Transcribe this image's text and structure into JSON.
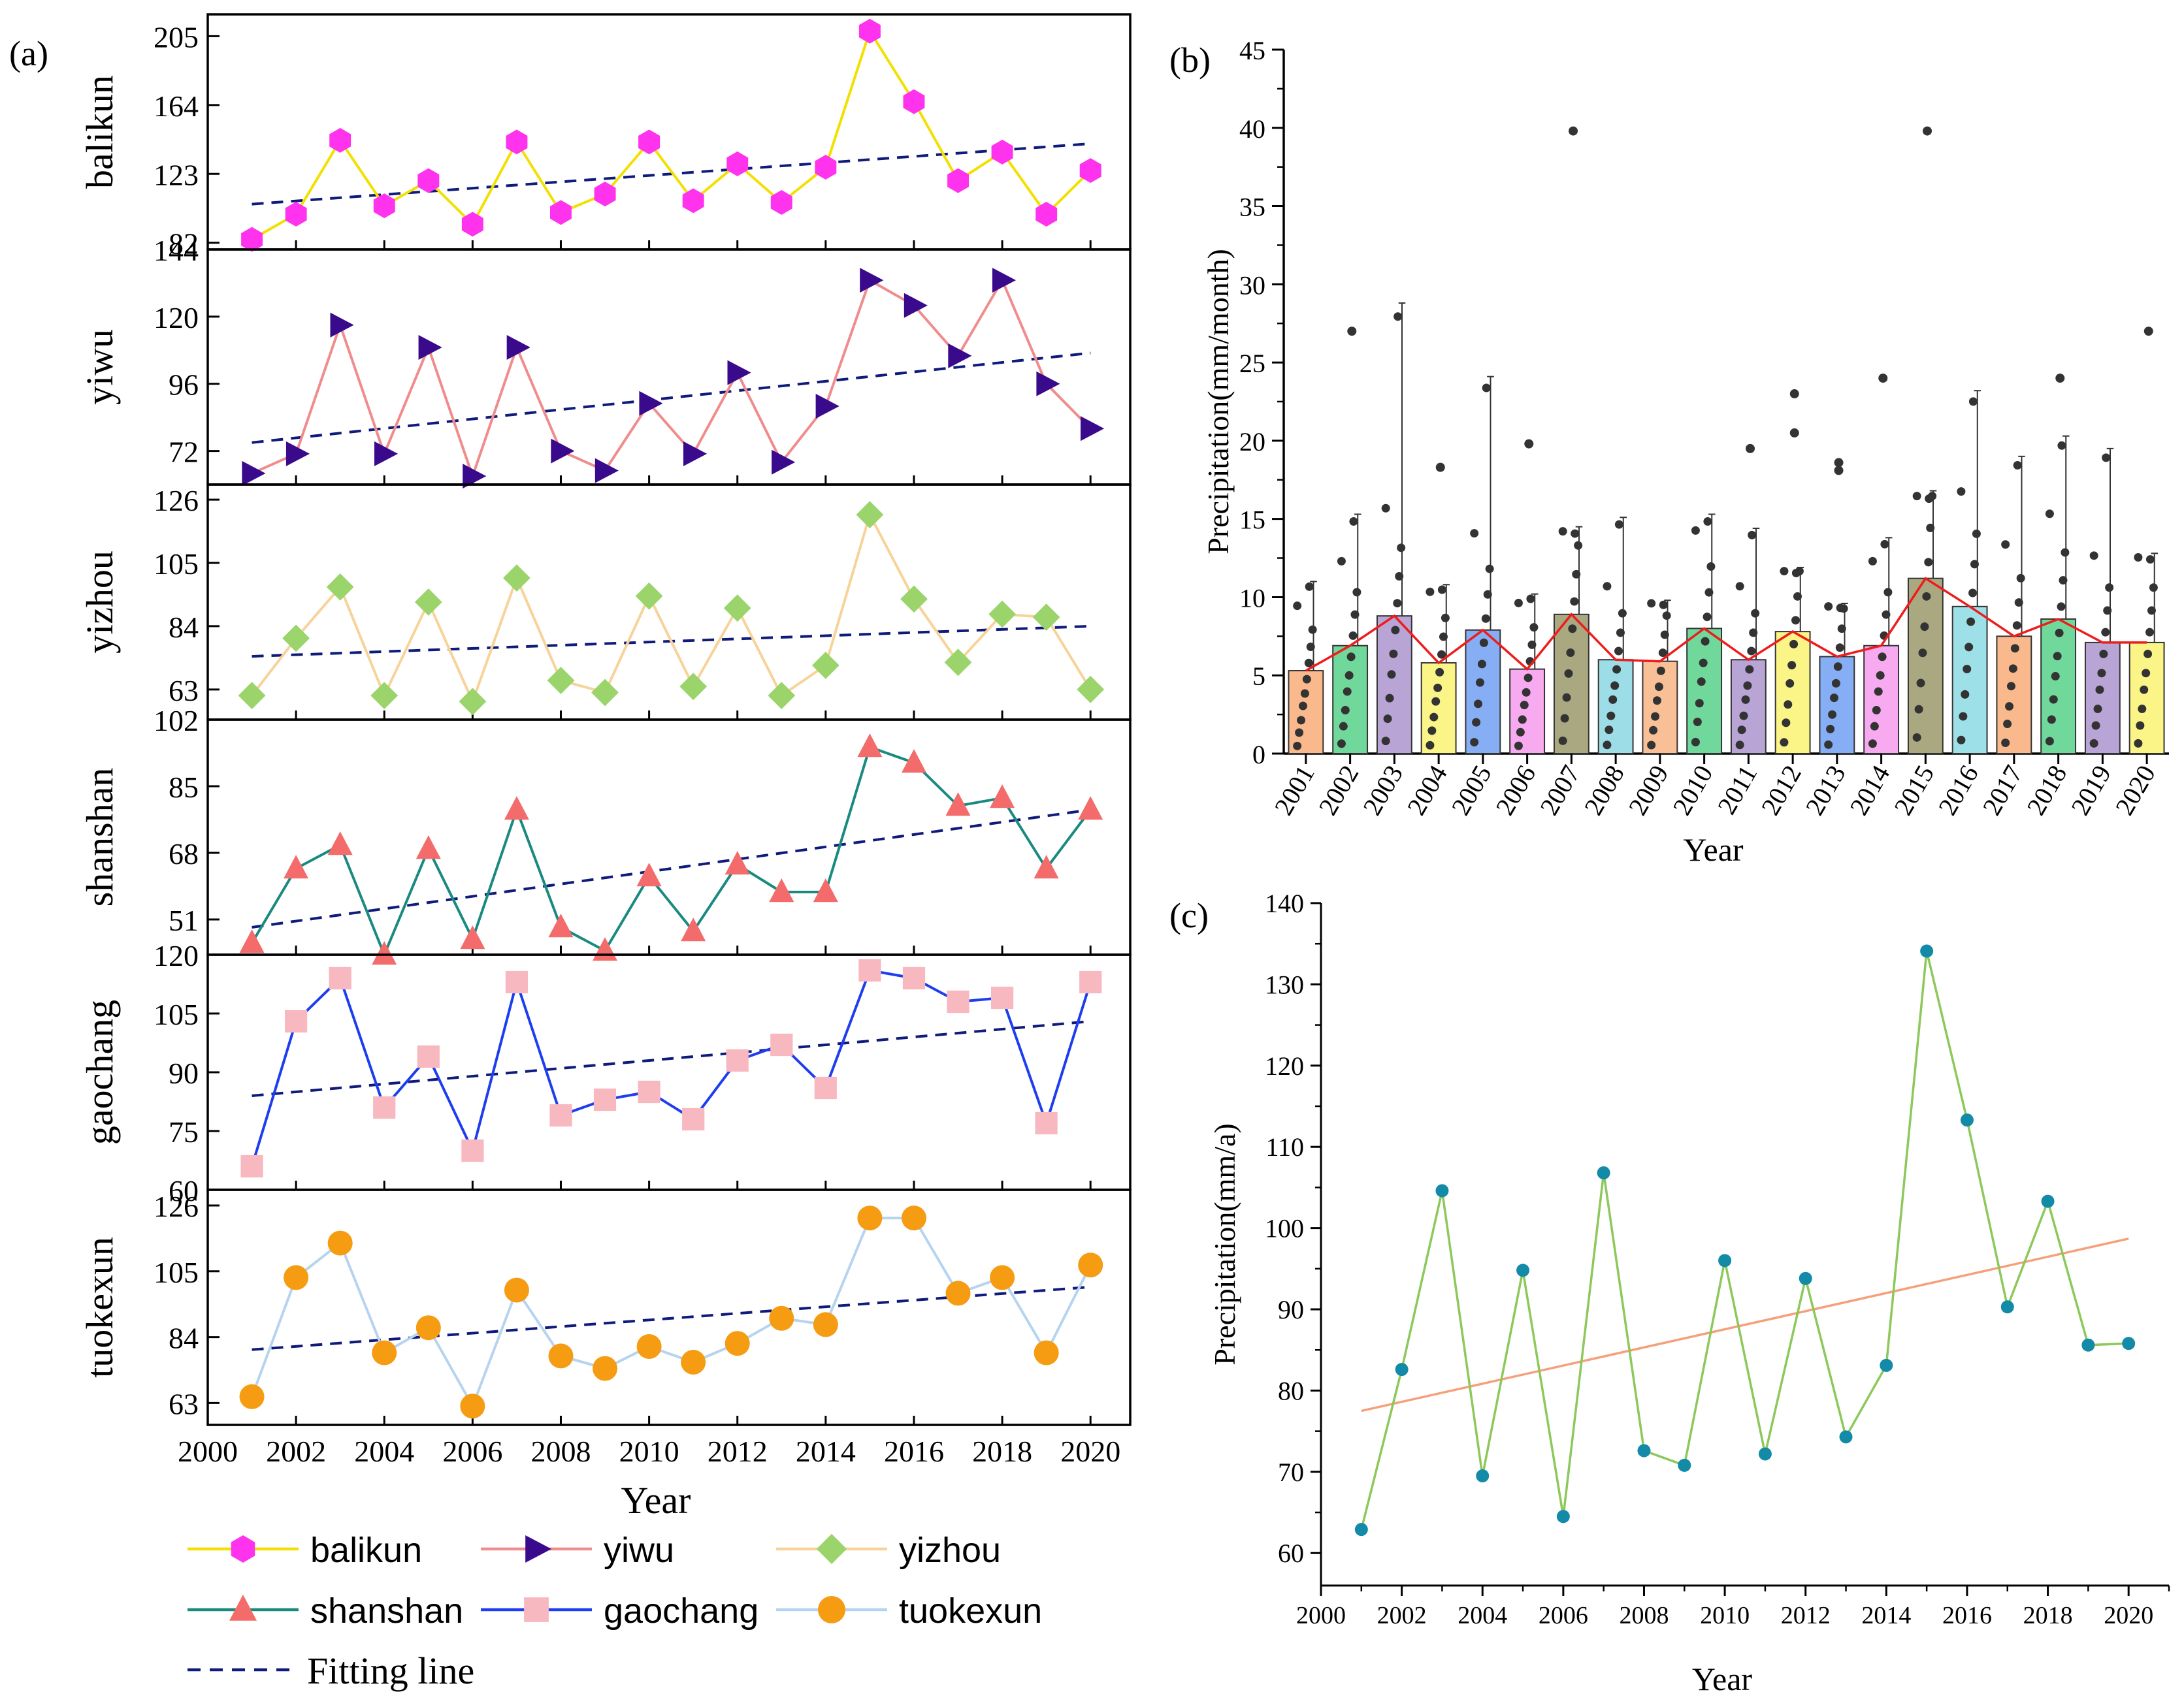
{
  "panel_labels": {
    "a": "(a)",
    "b": "(b)",
    "c": "(c)"
  },
  "colors": {
    "fit_line": "#0f1b7a",
    "balikun_line": "#f2e000",
    "balikun_marker": "#ff33ee",
    "yiwu_line": "#f08c8c",
    "yiwu_marker": "#3a0a8c",
    "yizhou_line": "#f7d39a",
    "yizhou_marker": "#9ad46a",
    "shanshan_line": "#1a8a80",
    "shanshan_marker": "#f46b6b",
    "gaochang_line": "#1d3ef0",
    "gaochang_marker": "#f7b8c0",
    "tuokexun_line": "#b6d4f0",
    "tuokexun_marker": "#f59c12",
    "c_line": "#8cc85a",
    "c_marker": "#138aa8",
    "c_fit": "#f5a07a",
    "b_mean_line": "#ee1c1c",
    "b_points": "#333333"
  },
  "chart_data": [
    {
      "id": "a",
      "type": "line",
      "xlabel": "Year",
      "xlim": [
        2000,
        2020.9
      ],
      "x_ticks": [
        "2000",
        "2002",
        "2004",
        "2006",
        "2008",
        "2010",
        "2012",
        "2014",
        "2016",
        "2018",
        "2020"
      ],
      "x": [
        2001,
        2002,
        2003,
        2004,
        2005,
        2006,
        2007,
        2008,
        2009,
        2010,
        2011,
        2012,
        2013,
        2014,
        2015,
        2016,
        2017,
        2018,
        2019,
        2020
      ],
      "series": [
        {
          "name": "balikun",
          "ylim": [
            78,
            218
          ],
          "y_ticks": [
            "82",
            "123",
            "164",
            "205"
          ],
          "marker": "hexagon",
          "values": [
            84,
            99,
            143,
            104,
            119,
            93,
            142,
            100,
            111,
            142,
            107,
            129,
            106,
            127,
            208,
            166,
            119,
            136,
            99,
            125
          ],
          "fit": [
            105,
            141
          ]
        },
        {
          "name": "yiwu",
          "ylim": [
            60,
            144
          ],
          "y_ticks": [
            "72",
            "96",
            "120",
            "144"
          ],
          "marker": "triangle-right",
          "values": [
            64,
            71,
            117,
            71,
            109,
            63,
            109,
            72,
            65,
            89,
            71,
            100,
            68,
            88,
            133,
            124,
            106,
            133,
            96,
            80
          ],
          "fit": [
            75,
            107
          ]
        },
        {
          "name": "yizhou",
          "ylim": [
            53,
            131
          ],
          "y_ticks": [
            "63",
            "84",
            "105",
            "126"
          ],
          "marker": "diamond",
          "values": [
            61,
            80,
            97,
            61,
            92,
            59,
            100,
            66,
            62,
            94,
            64,
            90,
            61,
            71,
            121,
            93,
            72,
            88,
            87,
            63
          ],
          "fit": [
            74,
            84
          ]
        },
        {
          "name": "shanshan",
          "ylim": [
            42,
            102
          ],
          "y_ticks": [
            "51",
            "68",
            "85",
            "102"
          ],
          "marker": "triangle-up",
          "values": [
            45,
            64,
            70,
            42,
            69,
            46,
            79,
            49,
            43,
            62,
            48,
            65,
            58,
            58,
            95,
            91,
            80,
            82,
            64,
            79
          ],
          "fit": [
            49,
            79
          ]
        },
        {
          "name": "gaochang",
          "ylim": [
            60,
            120
          ],
          "y_ticks": [
            "60",
            "75",
            "90",
            "105",
            "120"
          ],
          "marker": "square",
          "values": [
            66,
            103,
            114,
            81,
            94,
            70,
            113,
            79,
            83,
            85,
            78,
            93,
            97,
            86,
            116,
            114,
            108,
            109,
            77,
            113
          ],
          "fit": [
            84,
            103
          ]
        },
        {
          "name": "tuokexun",
          "ylim": [
            56,
            131
          ],
          "y_ticks": [
            "63",
            "84",
            "105",
            "126"
          ],
          "marker": "circle",
          "values": [
            65,
            103,
            114,
            79,
            87,
            62,
            99,
            78,
            74,
            81,
            76,
            82,
            90,
            88,
            122,
            122,
            98,
            103,
            79,
            107
          ],
          "fit": [
            80,
            100
          ]
        }
      ],
      "legend": [
        "balikun",
        "yiwu",
        "yizhou",
        "shanshan",
        "gaochang",
        "tuokexun",
        "Fitting line"
      ]
    },
    {
      "id": "b",
      "type": "bar",
      "xlabel": "Year",
      "ylabel": "Precipitation(mm/month)",
      "ylim": [
        0,
        45
      ],
      "y_ticks": [
        "0",
        "5",
        "10",
        "15",
        "20",
        "25",
        "30",
        "35",
        "40",
        "45"
      ],
      "categories": [
        "2001",
        "2002",
        "2003",
        "2004",
        "2005",
        "2006",
        "2007",
        "2008",
        "2009",
        "2010",
        "2011",
        "2012",
        "2013",
        "2014",
        "2015",
        "2016",
        "2017",
        "2018",
        "2019",
        "2020"
      ],
      "values": [
        5.3,
        6.9,
        8.8,
        5.8,
        7.9,
        5.4,
        8.9,
        6.0,
        5.9,
        8.0,
        6.0,
        7.8,
        6.2,
        6.9,
        11.2,
        9.4,
        7.5,
        8.6,
        7.1,
        7.1
      ],
      "whisker_top": [
        11.0,
        15.3,
        28.8,
        10.8,
        24.1,
        10.2,
        14.5,
        15.1,
        9.8,
        15.3,
        14.4,
        11.9,
        9.6,
        13.8,
        16.8,
        23.2,
        19.0,
        20.3,
        19.5,
        12.8
      ],
      "bar_colors": [
        "#f9b98c",
        "#6fd89a",
        "#b9a4d6",
        "#fbf588",
        "#86aef5",
        "#f7aaf0",
        "#a9a880",
        "#9ddde8",
        "#f9bf96",
        "#6fd89a",
        "#b9a4d6",
        "#fbf588",
        "#86aef5",
        "#f7aaf0",
        "#a9a880",
        "#9de0e8",
        "#f9b98c",
        "#6fd89a",
        "#b9a4d6",
        "#fbf588"
      ],
      "outliers": [
        [
          2002,
          27
        ],
        [
          2007,
          39.8
        ],
        [
          2015,
          39.8
        ],
        [
          2020,
          27
        ],
        [
          2004,
          18.3
        ],
        [
          2006,
          19.8
        ],
        [
          2011,
          19.5
        ],
        [
          2012,
          23
        ],
        [
          2012,
          20.5
        ],
        [
          2013,
          18.6
        ],
        [
          2013,
          18.1
        ],
        [
          2014,
          24
        ],
        [
          2018,
          24
        ]
      ],
      "mean_line": true
    },
    {
      "id": "c",
      "type": "line",
      "xlabel": "Year",
      "ylabel": "Precipitation(mm/a)",
      "xlim": [
        2000,
        2021
      ],
      "ylim": [
        56,
        140
      ],
      "x_ticks": [
        "2000",
        "2002",
        "2004",
        "2006",
        "2008",
        "2010",
        "2012",
        "2014",
        "2016",
        "2018",
        "2020"
      ],
      "y_ticks": [
        "60",
        "70",
        "80",
        "90",
        "100",
        "110",
        "120",
        "130",
        "140"
      ],
      "x": [
        2001,
        2002,
        2003,
        2004,
        2005,
        2006,
        2007,
        2008,
        2009,
        2010,
        2011,
        2012,
        2013,
        2014,
        2015,
        2016,
        2017,
        2018,
        2019,
        2020
      ],
      "values": [
        62.9,
        82.6,
        104.6,
        69.5,
        94.8,
        64.5,
        106.8,
        72.6,
        70.8,
        96.0,
        72.2,
        93.8,
        74.3,
        83.1,
        134.1,
        113.3,
        90.3,
        103.3,
        85.6,
        85.8
      ],
      "fit": [
        77.5,
        98.7
      ]
    }
  ]
}
